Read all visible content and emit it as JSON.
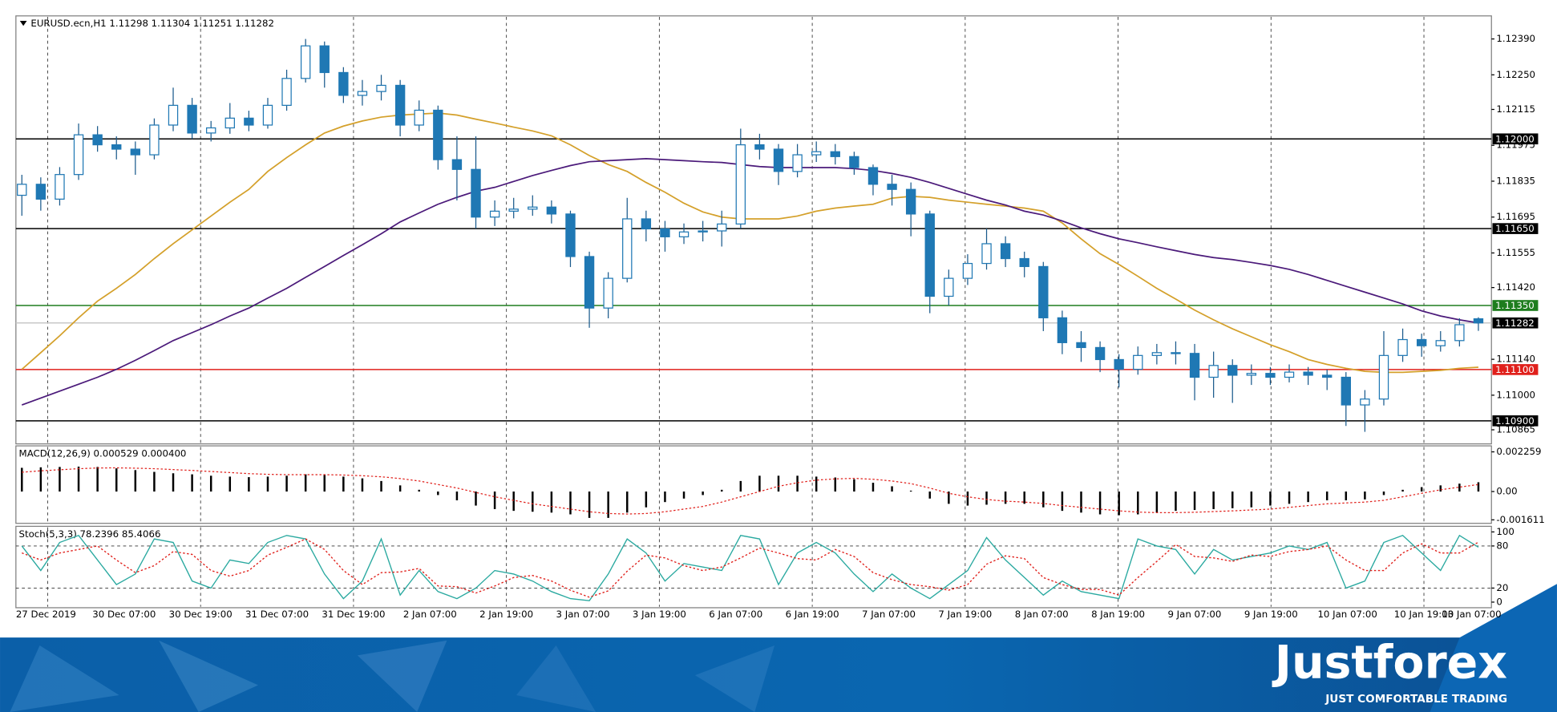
{
  "chart_data": [
    {
      "type": "candlestick",
      "title": "EURUSD.ecn,H1  1.11298 1.11304 1.11251 1.11282",
      "open": [
        1.1178,
        1.11823,
        1.11765,
        1.11861,
        1.12016,
        1.11977,
        1.1196,
        1.11938,
        1.12054,
        1.12131,
        1.12023,
        1.12043,
        1.12081,
        1.12054,
        1.12131,
        1.12236,
        1.12363,
        1.12259,
        1.1217,
        1.12185,
        1.12209,
        1.12054,
        1.12112,
        1.11919,
        1.11881,
        1.11695,
        1.11718,
        1.11726,
        1.11734,
        1.11707,
        1.11541,
        1.1134,
        1.11456,
        1.11688,
        1.11649,
        1.11618,
        1.11637,
        1.11641,
        1.11668,
        1.11977,
        1.1196,
        1.11873,
        1.11938,
        1.1195,
        1.11931,
        1.11888,
        1.11823,
        1.11803,
        1.11707,
        1.11386,
        1.11456,
        1.11514,
        1.11591,
        1.11533,
        1.11502,
        1.11302,
        1.11205,
        1.11186,
        1.11139,
        1.11101,
        1.11155,
        1.11166,
        1.11163,
        1.1107,
        1.11116,
        1.11078,
        1.11085,
        1.1107,
        1.1109,
        1.11078,
        1.1107,
        1.10962,
        1.10985,
        1.11155,
        1.11217,
        1.11193,
        1.11213,
        1.11298
      ],
      "high": [
        1.1186,
        1.1185,
        1.1189,
        1.1206,
        1.1205,
        1.1201,
        1.1199,
        1.1208,
        1.122,
        1.1216,
        1.1207,
        1.1214,
        1.1211,
        1.1216,
        1.1227,
        1.1239,
        1.1238,
        1.1228,
        1.1223,
        1.1225,
        1.1223,
        1.1215,
        1.1213,
        1.1201,
        1.1201,
        1.1176,
        1.1177,
        1.1178,
        1.1176,
        1.1172,
        1.1156,
        1.1148,
        1.1177,
        1.1172,
        1.1168,
        1.1167,
        1.1168,
        1.1172,
        1.1204,
        1.1202,
        1.1198,
        1.1198,
        1.1199,
        1.1198,
        1.1195,
        1.119,
        1.1186,
        1.1183,
        1.1172,
        1.1149,
        1.1155,
        1.1165,
        1.1162,
        1.1156,
        1.1152,
        1.1133,
        1.1125,
        1.1121,
        1.1116,
        1.1119,
        1.112,
        1.1121,
        1.112,
        1.1117,
        1.1114,
        1.1112,
        1.1111,
        1.1112,
        1.1111,
        1.111,
        1.1109,
        1.1102,
        1.1125,
        1.1126,
        1.1124,
        1.1125,
        1.113,
        1.11304
      ],
      "low": [
        1.117,
        1.1172,
        1.1174,
        1.1184,
        1.1195,
        1.1192,
        1.1186,
        1.1192,
        1.1203,
        1.12,
        1.1199,
        1.1202,
        1.1203,
        1.1204,
        1.1211,
        1.1222,
        1.122,
        1.1214,
        1.1213,
        1.1215,
        1.1201,
        1.1203,
        1.1188,
        1.1176,
        1.1165,
        1.1166,
        1.1169,
        1.117,
        1.1167,
        1.115,
        1.11263,
        1.113,
        1.1144,
        1.116,
        1.1156,
        1.1159,
        1.116,
        1.1158,
        1.1165,
        1.1192,
        1.1182,
        1.1185,
        1.1191,
        1.119,
        1.1186,
        1.1178,
        1.1174,
        1.1162,
        1.1132,
        1.1135,
        1.1143,
        1.1149,
        1.115,
        1.1146,
        1.1125,
        1.1116,
        1.1113,
        1.1109,
        1.1103,
        1.1108,
        1.1112,
        1.1112,
        1.1098,
        1.1099,
        1.1097,
        1.1104,
        1.1104,
        1.1105,
        1.1104,
        1.1102,
        1.1088,
        1.10857,
        1.1096,
        1.1113,
        1.1115,
        1.1117,
        1.1119,
        1.11251
      ],
      "close": [
        1.11823,
        1.11765,
        1.11861,
        1.12016,
        1.11977,
        1.1196,
        1.11938,
        1.12054,
        1.12131,
        1.12023,
        1.12043,
        1.12081,
        1.12054,
        1.12131,
        1.12236,
        1.12363,
        1.12259,
        1.1217,
        1.12185,
        1.12209,
        1.12054,
        1.12112,
        1.11919,
        1.11881,
        1.11695,
        1.11718,
        1.11726,
        1.11734,
        1.11707,
        1.11541,
        1.1134,
        1.11456,
        1.11688,
        1.11649,
        1.11618,
        1.11637,
        1.11641,
        1.11668,
        1.11977,
        1.1196,
        1.11873,
        1.11938,
        1.1195,
        1.11931,
        1.11888,
        1.11823,
        1.11803,
        1.11707,
        1.11386,
        1.11456,
        1.11514,
        1.11591,
        1.11533,
        1.11502,
        1.11302,
        1.11205,
        1.11186,
        1.11139,
        1.11101,
        1.11155,
        1.11166,
        1.11163,
        1.1107,
        1.11116,
        1.11078,
        1.11085,
        1.1107,
        1.1109,
        1.11078,
        1.1107,
        1.10962,
        1.10985,
        1.11155,
        1.11217,
        1.11193,
        1.11213,
        1.11275,
        1.11282
      ],
      "up_color": "#ffffff",
      "down_color": "#1f78b4",
      "wick_color": "#1a5a8c",
      "series": [
        {
          "color": "#d4a02a",
          "values": [
            1.11101,
            1.11166,
            1.11232,
            1.11302,
            1.11367,
            1.11417,
            1.11471,
            1.11533,
            1.11591,
            1.11645,
            1.11699,
            1.11753,
            1.11803,
            1.11873,
            1.11927,
            1.11977,
            1.12023,
            1.1205,
            1.1207,
            1.12085,
            1.12093,
            1.12097,
            1.12101,
            1.12093,
            1.12077,
            1.12062,
            1.12046,
            1.12031,
            1.12012,
            1.11977,
            1.11935,
            1.119,
            1.11873,
            1.1183,
            1.11792,
            1.11749,
            1.11715,
            1.11695,
            1.11688,
            1.11688,
            1.11688,
            1.11699,
            1.11718,
            1.1173,
            1.11738,
            1.11745,
            1.11769,
            1.11776,
            1.11772,
            1.11761,
            1.11753,
            1.11745,
            1.11738,
            1.1173,
            1.11718,
            1.11672,
            1.1161,
            1.11552,
            1.1151,
            1.11464,
            1.11417,
            1.11375,
            1.11332,
            1.11294,
            1.11259,
            1.11228,
            1.11197,
            1.1117,
            1.11139,
            1.1112,
            1.11105,
            1.11093,
            1.11089,
            1.11089,
            1.11093,
            1.11097,
            1.11105,
            1.11109
          ]
        },
        {
          "color": "#4b1a7a",
          "values": [
            1.10962,
            1.10989,
            1.11016,
            1.11043,
            1.1107,
            1.11101,
            1.11136,
            1.11174,
            1.11213,
            1.11244,
            1.11275,
            1.11309,
            1.1134,
            1.11379,
            1.11417,
            1.1146,
            1.11502,
            1.11545,
            1.11587,
            1.1163,
            1.11676,
            1.11711,
            1.11745,
            1.11772,
            1.11796,
            1.11811,
            1.11834,
            1.11857,
            1.11877,
            1.11896,
            1.11911,
            1.11915,
            1.11919,
            1.11923,
            1.11919,
            1.11915,
            1.11911,
            1.11908,
            1.119,
            1.11892,
            1.11888,
            1.11888,
            1.11888,
            1.11888,
            1.11884,
            1.11877,
            1.11865,
            1.1185,
            1.1183,
            1.11807,
            1.11784,
            1.11761,
            1.11742,
            1.11718,
            1.11703,
            1.1168,
            1.11653,
            1.1163,
            1.1161,
            1.11595,
            1.11579,
            1.11564,
            1.11549,
            1.11537,
            1.11529,
            1.11518,
            1.11506,
            1.11491,
            1.11471,
            1.11448,
            1.11425,
            1.11402,
            1.11379,
            1.11356,
            1.11329,
            1.11309,
            1.11294,
            1.11282
          ]
        }
      ],
      "ylim": [
        1.1081,
        1.1248
      ],
      "yticks": [
        {
          "value": 1.1239,
          "label": "1.12390"
        },
        {
          "value": 1.1225,
          "label": "1.12250"
        },
        {
          "value": 1.12115,
          "label": "1.12115"
        },
        {
          "value": 1.11975,
          "label": "1.11975"
        },
        {
          "value": 1.11835,
          "label": "1.11835"
        },
        {
          "value": 1.11695,
          "label": "1.11695"
        },
        {
          "value": 1.11555,
          "label": "1.11555"
        },
        {
          "value": 1.1142,
          "label": "1.11420"
        },
        {
          "value": 1.1114,
          "label": "1.11140"
        },
        {
          "value": 1.11,
          "label": "1.11000"
        },
        {
          "value": 1.10865,
          "label": "1.10865"
        }
      ],
      "levels": [
        {
          "value": 1.12,
          "label": "1.12000",
          "color": "#000000",
          "label_color": "#000000"
        },
        {
          "value": 1.1165,
          "label": "1.11650",
          "color": "#000000",
          "label_color": "#000000"
        },
        {
          "value": 1.1135,
          "label": "1.11350",
          "color": "#1e7d1e",
          "label_color": "#1e7d1e"
        },
        {
          "value": 1.11282,
          "label": "1.11282",
          "color": "#c8c8c8",
          "label_color": "#000000"
        },
        {
          "value": 1.111,
          "label": "1.11100",
          "color": "#e0201b",
          "label_color": "#e0201b"
        },
        {
          "value": 1.109,
          "label": "1.10900",
          "color": "#000000",
          "label_color": "#000000"
        }
      ]
    },
    {
      "type": "macd",
      "title": "MACD(12,26,9) 0.000529 0.000400",
      "histogram": [
        0.00135,
        0.00138,
        0.0014,
        0.00142,
        0.0014,
        0.00132,
        0.00122,
        0.00112,
        0.00104,
        0.00098,
        0.0009,
        0.00085,
        0.00082,
        0.00085,
        0.0009,
        0.00098,
        0.00095,
        0.00085,
        0.00075,
        0.0006,
        0.00035,
        0.0001,
        -0.0002,
        -0.0005,
        -0.0008,
        -0.001,
        -0.0011,
        -0.00115,
        -0.0012,
        -0.0013,
        -0.0015,
        -0.0015,
        -0.0012,
        -0.0009,
        -0.0006,
        -0.0004,
        -0.0002,
        0.0001,
        0.0006,
        0.0009,
        0.0009,
        0.0009,
        0.00085,
        0.0008,
        0.0007,
        0.0005,
        0.0003,
        5e-05,
        -0.0004,
        -0.0007,
        -0.0008,
        -0.00075,
        -0.0007,
        -0.0007,
        -0.0009,
        -0.0011,
        -0.0012,
        -0.0013,
        -0.00135,
        -0.0013,
        -0.0012,
        -0.0011,
        -0.00105,
        -0.001,
        -0.00095,
        -0.0009,
        -0.0008,
        -0.0007,
        -0.0006,
        -0.0005,
        -0.0005,
        -0.00045,
        -0.0002,
        0.0001,
        0.00025,
        0.00035,
        0.00045,
        0.000529
      ],
      "histogram_color": "#000000",
      "signal": {
        "color": "#e0201b",
        "values": [
          0.0011,
          0.00118,
          0.00124,
          0.0013,
          0.00134,
          0.00135,
          0.00133,
          0.0013,
          0.00125,
          0.0012,
          0.00114,
          0.00108,
          0.00102,
          0.00098,
          0.00096,
          0.00096,
          0.00096,
          0.00094,
          0.0009,
          0.00084,
          0.00074,
          0.0006,
          0.0004,
          0.0002,
          -5e-05,
          -0.0003,
          -0.0005,
          -0.0007,
          -0.00085,
          -0.001,
          -0.00115,
          -0.00125,
          -0.00128,
          -0.00125,
          -0.00115,
          -0.001,
          -0.00085,
          -0.0006,
          -0.0003,
          0,
          0.0003,
          0.0005,
          0.00065,
          0.00072,
          0.00075,
          0.0007,
          0.0006,
          0.00045,
          0.0002,
          -0.0001,
          -0.0003,
          -0.00045,
          -0.00055,
          -0.0006,
          -0.00068,
          -0.0008,
          -0.0009,
          -0.001,
          -0.0011,
          -0.00117,
          -0.0012,
          -0.0012,
          -0.00118,
          -0.00114,
          -0.0011,
          -0.00105,
          -0.001,
          -0.0009,
          -0.0008,
          -0.0007,
          -0.00065,
          -0.0006,
          -0.0005,
          -0.0003,
          -0.0001,
          0.0001,
          0.00025,
          0.0004
        ]
      },
      "ylim": [
        -0.00181,
        0.0026
      ],
      "yticks": [
        {
          "value": 0.002259,
          "label": "0.002259"
        },
        {
          "value": 0,
          "label": "0.00"
        },
        {
          "value": -0.001611,
          "label": "-0.001611"
        }
      ]
    },
    {
      "type": "stochastic",
      "title": "Stoch(5,3,3) 78.2396 85.4066",
      "series": [
        {
          "color": "#2aa9a0",
          "dashed": false,
          "values": [
            80,
            45,
            85,
            95,
            60,
            25,
            40,
            90,
            85,
            30,
            20,
            60,
            55,
            85,
            95,
            90,
            40,
            5,
            30,
            90,
            10,
            45,
            15,
            5,
            20,
            45,
            40,
            30,
            15,
            5,
            2,
            40,
            90,
            70,
            30,
            55,
            50,
            45,
            95,
            90,
            25,
            70,
            85,
            70,
            40,
            15,
            40,
            20,
            5,
            25,
            45,
            92,
            60,
            35,
            10,
            30,
            15,
            10,
            5,
            90,
            80,
            75,
            40,
            75,
            60,
            65,
            70,
            80,
            75,
            85,
            20,
            30,
            85,
            95,
            70,
            45,
            95,
            78.2396
          ]
        },
        {
          "color": "#e0201b",
          "dashed": true,
          "values": [
            70,
            60,
            70,
            75,
            80,
            60,
            42,
            52,
            72,
            68,
            45,
            37,
            45,
            67,
            78,
            90,
            75,
            45,
            25,
            42,
            43,
            48,
            23,
            22,
            13,
            23,
            35,
            38,
            30,
            17,
            7,
            16,
            44,
            67,
            63,
            52,
            45,
            50,
            63,
            77,
            70,
            62,
            60,
            75,
            65,
            42,
            32,
            25,
            22,
            17,
            25,
            54,
            66,
            62,
            35,
            25,
            18,
            18,
            10,
            35,
            58,
            82,
            65,
            63,
            58,
            67,
            65,
            72,
            75,
            80,
            60,
            45,
            45,
            70,
            83,
            70,
            70,
            85.4066
          ]
        }
      ],
      "ylim": [
        -8,
        108
      ],
      "yticks": [
        100,
        80,
        20,
        0
      ],
      "levels": [
        80,
        20
      ],
      "x_labels": [
        "27 Dec 2019",
        "30 Dec 07:00",
        "30 Dec 19:00",
        "31 Dec 07:00",
        "31 Dec 19:00",
        "2 Jan 07:00",
        "2 Jan 19:00",
        "3 Jan 07:00",
        "3 Jan 19:00",
        "6 Jan 07:00",
        "6 Jan 19:00",
        "7 Jan 07:00",
        "7 Jan 19:00",
        "8 Jan 07:00",
        "8 Jan 19:00",
        "9 Jan 07:00",
        "9 Jan 19:00",
        "10 Jan 07:00",
        "10 Jan 19:00",
        "13 Jan 07:00"
      ]
    }
  ],
  "brand": {
    "name": "Justforex",
    "tagline": "JUST COMFORTABLE TRADING"
  }
}
